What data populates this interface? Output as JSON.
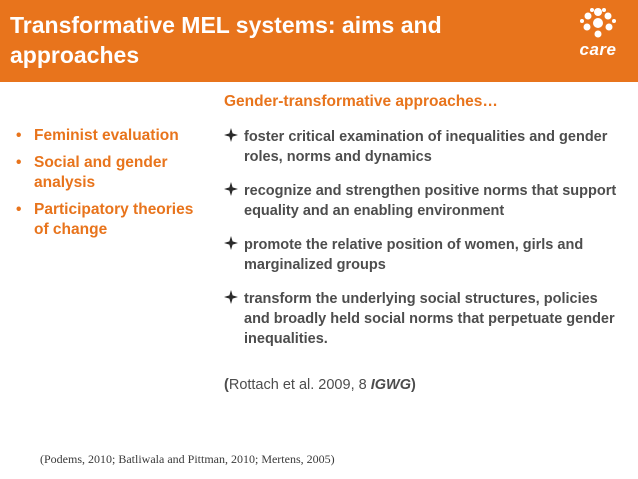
{
  "slide": {
    "title": "Transformative MEL systems: aims and approaches",
    "logo_text": "care",
    "left_items": [
      "Feminist evaluation",
      "Social and gender analysis",
      "Participatory theories of change"
    ],
    "right_heading": "Gender-transformative approaches…",
    "right_items": [
      "foster critical examination of inequalities and gender roles, norms and dynamics",
      "recognize and strengthen positive norms that support equality and an enabling environment",
      "promote the relative position of women, girls and marginalized groups",
      "transform the underlying social structures, policies and broadly held social norms that perpetuate gender inequalities."
    ],
    "citation": {
      "open": "(",
      "body": "Rottach et al. 2009, 8 ",
      "org": "IGWG",
      "close": ")"
    },
    "footer_refs": "(Podems, 2010; Batliwala and Pittman, 2010; Mertens, 2005)"
  },
  "colors": {
    "accent": "#e8741c",
    "body_text": "#4d4d4d",
    "background": "#ffffff"
  },
  "icons": {
    "bullet_right": "diamond-bullet-icon",
    "logo": "care-logo-icon"
  }
}
